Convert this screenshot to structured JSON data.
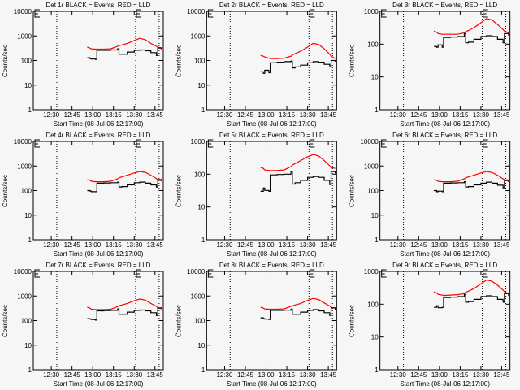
{
  "colors": {
    "background": "#f6f6f6",
    "events": "#000000",
    "lld": "#ff0000",
    "axes": "#000000"
  },
  "chart_data": {
    "type": "line",
    "layout": "3x3 grid",
    "xlim": [
      "12:17",
      "13:51"
    ],
    "xticks": [
      "12:30",
      "12:45",
      "13:00",
      "13:15",
      "13:30",
      "13:45"
    ],
    "xlabel": "Start Time (08-Jul-06 12:17:00)",
    "ylabel": "Counts/sec",
    "yscale": "log",
    "dotted_vertical_lines": [
      "12:34",
      "13:31",
      "13:48"
    ],
    "x": [
      "12:56",
      "12:58",
      "12:59",
      "13:02",
      "13:03",
      "13:08",
      "13:13",
      "13:18",
      "13:19",
      "13:21",
      "13:25",
      "13:30",
      "13:34",
      "13:38",
      "13:42",
      "13:46",
      "13:47",
      "13:50"
    ],
    "panels": [
      {
        "title": "Det 1r BLACK = Events, RED = LLD",
        "ylim": [
          1,
          10000
        ],
        "yticks": [
          "1",
          "10",
          "100",
          "1000",
          "10000"
        ],
        "series": [
          {
            "name": "Events",
            "color": "#000000",
            "values": [
              130,
              120,
              115,
              110,
              260,
              260,
              270,
              300,
              180,
              180,
              220,
              260,
              270,
              250,
              210,
              160,
              330,
              270
            ]
          },
          {
            "name": "LLD",
            "color": "#ff0000",
            "values": [
              350,
              320,
              300,
              290,
              290,
              290,
              300,
              380,
              400,
              430,
              500,
              650,
              800,
              700,
              500,
              380,
              350,
              300
            ]
          }
        ]
      },
      {
        "title": "Det 2r BLACK = Events, RED = LLD",
        "ylim": [
          1,
          10000
        ],
        "yticks": [
          "1",
          "10",
          "100",
          "1000",
          "10000"
        ],
        "series": [
          {
            "name": "Events",
            "color": "#000000",
            "values": [
              35,
              30,
              40,
              32,
              80,
              85,
              90,
              95,
              50,
              55,
              65,
              80,
              90,
              85,
              70,
              60,
              100,
              90
            ]
          },
          {
            "name": "LLD",
            "color": "#ff0000",
            "values": [
              160,
              150,
              140,
              125,
              120,
              120,
              125,
              150,
              170,
              190,
              240,
              350,
              500,
              450,
              300,
              180,
              150,
              120
            ]
          }
        ]
      },
      {
        "title": "Det 3r BLACK = Events, RED = LLD",
        "ylim": [
          1,
          1000
        ],
        "yticks": [
          "1",
          "10",
          "100",
          "1000"
        ],
        "series": [
          {
            "name": "Events",
            "color": "#000000",
            "values": [
              85,
              80,
              95,
              80,
              160,
              165,
              170,
              210,
              110,
              115,
              140,
              170,
              180,
              170,
              140,
              110,
              210,
              180
            ]
          },
          {
            "name": "LLD",
            "color": "#ff0000",
            "values": [
              250,
              230,
              210,
              200,
              200,
              200,
              200,
              220,
              240,
              260,
              320,
              450,
              600,
              550,
              400,
              280,
              250,
              220
            ]
          }
        ]
      },
      {
        "title": "Det 4r BLACK = Events, RED = LLD",
        "ylim": [
          1,
          10000
        ],
        "yticks": [
          "1",
          "10",
          "100",
          "1000",
          "10000"
        ],
        "series": [
          {
            "name": "Events",
            "color": "#000000",
            "values": [
              100,
              95,
              90,
              90,
              200,
              205,
              210,
              220,
              140,
              145,
              170,
              210,
              220,
              200,
              170,
              140,
              280,
              230
            ]
          },
          {
            "name": "LLD",
            "color": "#ff0000",
            "values": [
              280,
              260,
              240,
              230,
              230,
              230,
              240,
              300,
              330,
              360,
              420,
              520,
              600,
              550,
              420,
              310,
              280,
              250
            ]
          }
        ]
      },
      {
        "title": "Det 5r BLACK = Events, RED = LLD",
        "ylim": [
          1,
          1000
        ],
        "yticks": [
          "1",
          "10",
          "100",
          "1000"
        ],
        "series": [
          {
            "name": "Events",
            "color": "#000000",
            "values": [
              30,
              38,
              32,
              30,
              95,
              98,
              100,
              120,
              50,
              55,
              65,
              80,
              85,
              80,
              65,
              48,
              120,
              105
            ]
          },
          {
            "name": "LLD",
            "color": "#ff0000",
            "values": [
              160,
              150,
              135,
              130,
              128,
              130,
              135,
              170,
              190,
              210,
              260,
              340,
              400,
              360,
              260,
              180,
              160,
              150
            ]
          }
        ]
      },
      {
        "title": "Det 6r BLACK = Events, RED = LLD",
        "ylim": [
          1,
          10000
        ],
        "yticks": [
          "1",
          "10",
          "100",
          "1000",
          "10000"
        ],
        "series": [
          {
            "name": "Events",
            "color": "#000000",
            "values": [
              100,
              90,
              95,
              90,
              200,
              205,
              210,
              230,
              140,
              145,
              170,
              200,
              220,
              200,
              165,
              130,
              270,
              230
            ]
          },
          {
            "name": "LLD",
            "color": "#ff0000",
            "values": [
              280,
              260,
              240,
              230,
              230,
              230,
              240,
              300,
              330,
              360,
              420,
              520,
              600,
              540,
              420,
              300,
              270,
              240
            ]
          }
        ]
      },
      {
        "title": "Det 7r BLACK = Events, RED = LLD",
        "ylim": [
          1,
          10000
        ],
        "yticks": [
          "1",
          "10",
          "100",
          "1000",
          "10000"
        ],
        "series": [
          {
            "name": "Events",
            "color": "#000000",
            "values": [
              120,
              115,
              110,
              105,
              250,
              255,
              260,
              300,
              180,
              180,
              220,
              260,
              270,
              250,
              210,
              160,
              330,
              280
            ]
          },
          {
            "name": "LLD",
            "color": "#ff0000",
            "values": [
              350,
              320,
              290,
              280,
              280,
              280,
              290,
              370,
              400,
              430,
              500,
              640,
              750,
              680,
              500,
              380,
              340,
              300
            ]
          }
        ]
      },
      {
        "title": "Det 8r BLACK = Events, RED = LLD",
        "ylim": [
          1,
          10000
        ],
        "yticks": [
          "1",
          "10",
          "100",
          "1000",
          "10000"
        ],
        "series": [
          {
            "name": "Events",
            "color": "#000000",
            "values": [
              130,
              120,
              115,
              110,
              260,
              260,
              265,
              290,
              180,
              180,
              220,
              260,
              280,
              250,
              210,
              160,
              330,
              280
            ]
          },
          {
            "name": "LLD",
            "color": "#ff0000",
            "values": [
              350,
              320,
              300,
              290,
              290,
              290,
              300,
              380,
              400,
              430,
              500,
              660,
              800,
              720,
              520,
              390,
              350,
              320
            ]
          }
        ]
      },
      {
        "title": "Det 9r BLACK = Events, RED = LLD",
        "ylim": [
          1,
          1000
        ],
        "yticks": [
          "1",
          "10",
          "100",
          "1000"
        ],
        "series": [
          {
            "name": "Events",
            "color": "#000000",
            "values": [
              80,
              90,
              78,
              80,
              160,
              165,
              170,
              200,
              115,
              120,
              140,
              170,
              180,
              170,
              140,
              115,
              210,
              180
            ]
          },
          {
            "name": "LLD",
            "color": "#ff0000",
            "values": [
              240,
              220,
              200,
              190,
              185,
              190,
              195,
              210,
              230,
              250,
              300,
              420,
              550,
              500,
              380,
              270,
              240,
              210
            ]
          }
        ]
      }
    ]
  }
}
